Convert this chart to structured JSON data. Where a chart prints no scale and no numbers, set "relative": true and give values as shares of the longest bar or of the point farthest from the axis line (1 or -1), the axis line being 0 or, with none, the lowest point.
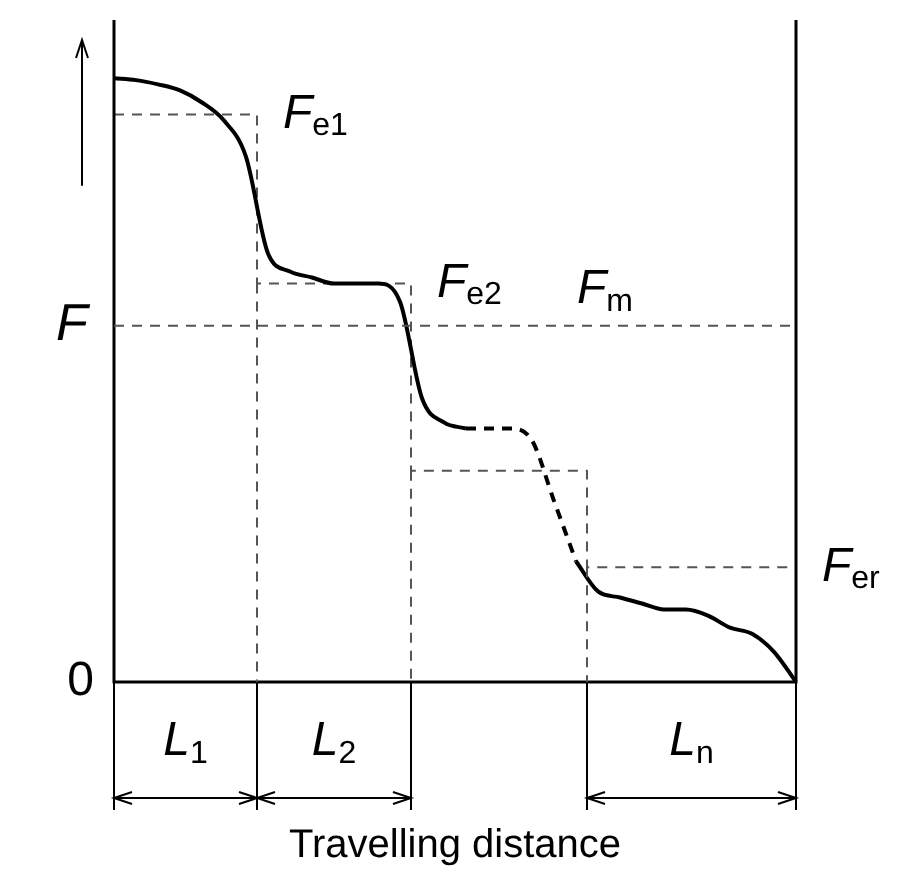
{
  "chart_data": {
    "type": "line",
    "relative": true,
    "xlabel": "Travelling distance",
    "ylabel": "F",
    "categories": [
      null,
      null,
      null,
      null,
      null,
      null,
      null,
      null,
      null,
      null,
      null,
      null,
      null,
      null,
      null,
      null,
      null,
      null,
      null,
      null,
      null,
      null,
      null,
      null,
      null,
      null,
      null,
      null,
      null,
      null,
      null,
      null
    ],
    "series": [
      {
        "type": "line",
        "color": "#000000",
        "line_style": "solid",
        "values": [
          1.0,
          0.997,
          0.99,
          0.98,
          0.96,
          0.93,
          0.87,
          0.71,
          0.68,
          0.67,
          0.66,
          0.66,
          0.66,
          0.63,
          0.47,
          0.43,
          0.42,
          null,
          null,
          null,
          null,
          0.2,
          0.15,
          0.14,
          0.13,
          0.12,
          0.12,
          0.11,
          0.09,
          0.08,
          0.05,
          0
        ]
      },
      {
        "type": "line",
        "color": "#000000",
        "line_style": "dashed",
        "values": [
          null,
          null,
          null,
          null,
          null,
          null,
          null,
          null,
          null,
          null,
          null,
          null,
          null,
          null,
          null,
          null,
          0.42,
          0.42,
          0.42,
          0.4,
          0.3,
          0.2,
          null,
          null,
          null,
          null,
          null,
          null,
          null,
          null,
          null,
          null
        ]
      },
      {
        "type": "step",
        "color": "#555555",
        "line_style": "dashed",
        "values": [
          0.94,
          0.94,
          0.94,
          0.94,
          0.94,
          0.94,
          0.94,
          0.66,
          0.66,
          0.66,
          0.66,
          0.66,
          0.66,
          0.66,
          0.35,
          0.35,
          0.35,
          0.35,
          0.35,
          0.35,
          0.35,
          0.35,
          0.19,
          0.19,
          0.19,
          0.19,
          0.19,
          0.19,
          0.19,
          0.19,
          0.19,
          0.19
        ]
      }
    ],
    "ref_lines": [
      {
        "axis": "y",
        "value": 0.59,
        "label": "F$_{m}$",
        "color": "#555555",
        "line_style": "dashed"
      }
    ],
    "annotations": [
      "F$_{e1}$",
      "F$_{e2}$",
      "F$_{er}$",
      "0",
      "L$_{1}$",
      "L$_{2}$",
      "L$_{n}$"
    ]
  }
}
